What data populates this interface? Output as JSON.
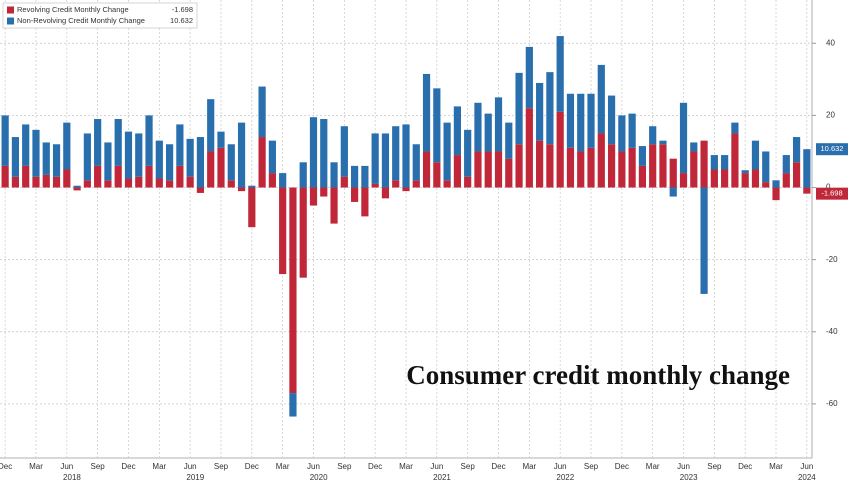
{
  "chart_data": {
    "type": "stacked_bar",
    "annotation": "Consumer credit monthly change",
    "categories": [
      "Dec",
      null,
      null,
      "Mar",
      null,
      null,
      "Jun",
      null,
      null,
      "Sep",
      null,
      null,
      "Dec",
      null,
      null,
      "Mar",
      null,
      null,
      "Jun",
      null,
      null,
      "Sep",
      null,
      null,
      "Dec",
      null,
      null,
      "Mar",
      null,
      null,
      "Jun",
      null,
      null,
      "Sep",
      null,
      null,
      "Dec",
      null,
      null,
      "Mar",
      null,
      null,
      "Jun",
      null,
      null,
      "Sep",
      null,
      null,
      "Dec",
      null,
      null,
      "Mar",
      null,
      null,
      "Jun",
      null,
      null,
      "Sep",
      null,
      null,
      "Dec",
      null,
      null,
      "Mar",
      null,
      null,
      "Jun",
      null,
      null,
      "Sep",
      null,
      null,
      "Dec",
      null,
      null,
      "Mar",
      null,
      null,
      "Jun"
    ],
    "x_groups": [
      {
        "label": "2018",
        "start": 1,
        "end": 12
      },
      {
        "label": "2019",
        "start": 13,
        "end": 24
      },
      {
        "label": "2020",
        "start": 25,
        "end": 36
      },
      {
        "label": "2021",
        "start": 37,
        "end": 48
      },
      {
        "label": "2022",
        "start": 49,
        "end": 60
      },
      {
        "label": "2023",
        "start": 61,
        "end": 72
      },
      {
        "label": "2024",
        "start": 73,
        "end": 84
      }
    ],
    "series": [
      {
        "name": "Revolving Credit Monthly Change",
        "color": "#c0283a",
        "values": [
          6,
          3,
          6,
          3,
          3.5,
          3,
          5,
          -0.8,
          2,
          6,
          2,
          6,
          2.5,
          3,
          6,
          2.5,
          2,
          6,
          3,
          -1.5,
          10,
          11,
          2,
          -1,
          -11,
          14,
          4,
          -24,
          -57,
          -25,
          -5,
          -2.5,
          -10,
          3,
          -4,
          -8,
          1,
          -3,
          2,
          -1,
          2,
          10,
          7,
          2,
          9,
          3,
          10,
          10,
          10,
          8,
          12,
          22,
          13,
          12,
          21,
          11,
          10,
          11,
          15,
          12,
          10,
          11,
          6,
          12,
          12,
          8,
          4,
          10,
          13,
          5,
          5,
          15,
          4,
          5,
          1.5,
          -3.5,
          4,
          7,
          -1.698
        ]
      },
      {
        "name": "Non-Revolving Credit Monthly Change",
        "color": "#2a6fad",
        "values": [
          14,
          11,
          11.5,
          13,
          9,
          9,
          13,
          0.5,
          13,
          13,
          10.5,
          13,
          13,
          12,
          14,
          10.5,
          10,
          11.5,
          10.5,
          14,
          14.5,
          4.5,
          10,
          18,
          0.5,
          14,
          9,
          4,
          -6.5,
          7,
          19.5,
          19,
          7,
          14,
          6,
          6,
          14,
          15,
          15,
          17.5,
          10,
          21.5,
          20.5,
          16,
          13.5,
          13,
          13.5,
          10.5,
          15,
          10,
          19.8,
          17,
          16,
          20,
          21,
          15,
          16,
          15,
          19,
          13.5,
          10,
          9.5,
          5.5,
          5,
          1,
          -2.5,
          19.5,
          2.5,
          -29.5,
          4,
          4,
          3,
          0.8,
          8,
          8.5,
          2,
          5,
          7,
          10.632
        ]
      }
    ],
    "ylim": [
      -75,
      52
    ],
    "yticks": [
      -60,
      -40,
      -20,
      0,
      20,
      40
    ],
    "grid": true,
    "legend": "top-left"
  }
}
